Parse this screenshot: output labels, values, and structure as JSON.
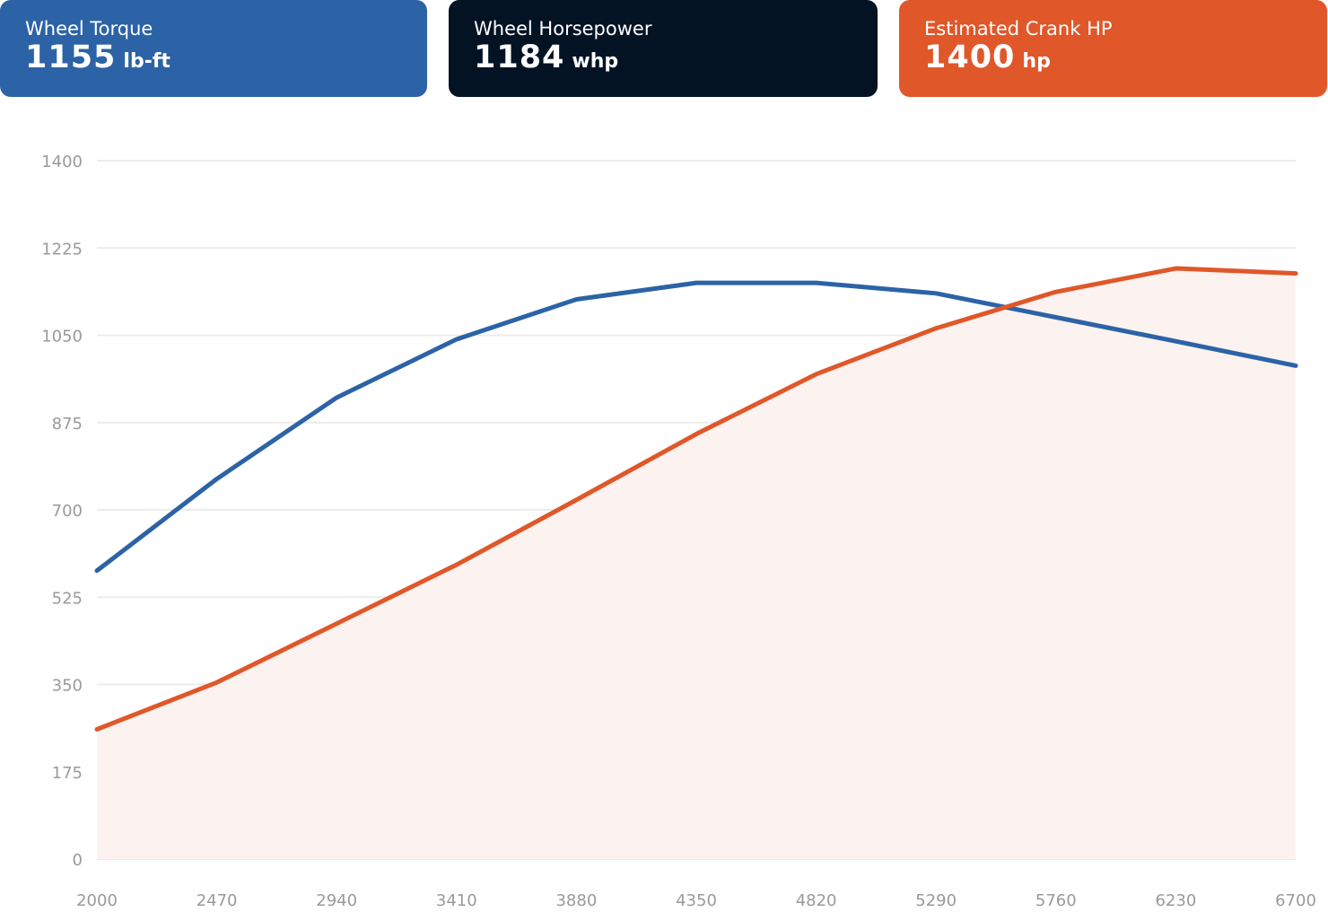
{
  "cards": [
    {
      "id": "torque",
      "title": "Wheel Torque",
      "value": "1155",
      "unit": "lb-ft",
      "color": "#2c63a6"
    },
    {
      "id": "whp",
      "title": "Wheel Horsepower",
      "value": "1184",
      "unit": "whp",
      "color": "#031324"
    },
    {
      "id": "crank",
      "title": "Estimated Crank HP",
      "value": "1400",
      "unit": "hp",
      "color": "#e0572a"
    }
  ],
  "chart_data": {
    "type": "line",
    "x": [
      2000,
      2470,
      2940,
      3410,
      3880,
      4350,
      4820,
      5290,
      5760,
      6230,
      6700
    ],
    "xticks": [
      "2000",
      "2470",
      "2940",
      "3410",
      "3880",
      "4350",
      "4820",
      "5290",
      "5760",
      "6230",
      "6700"
    ],
    "yticks": [
      "0",
      "175",
      "350",
      "525",
      "700",
      "875",
      "1050",
      "1225",
      "1400"
    ],
    "ylim": [
      0,
      1400
    ],
    "xlim": [
      2000,
      6700
    ],
    "grid": true,
    "series": [
      {
        "id": "torque",
        "color": "#2c63a6",
        "fill": false,
        "values": [
          578,
          762,
          925,
          1042,
          1122,
          1155,
          1155,
          1134,
          1086,
          1038,
          989
        ]
      },
      {
        "id": "horsepower",
        "color": "#e0572a",
        "fill": true,
        "fill_color": "#fcf2ef",
        "values": [
          260,
          354,
          472,
          590,
          720,
          852,
          972,
          1064,
          1137,
          1184,
          1174
        ]
      }
    ]
  }
}
